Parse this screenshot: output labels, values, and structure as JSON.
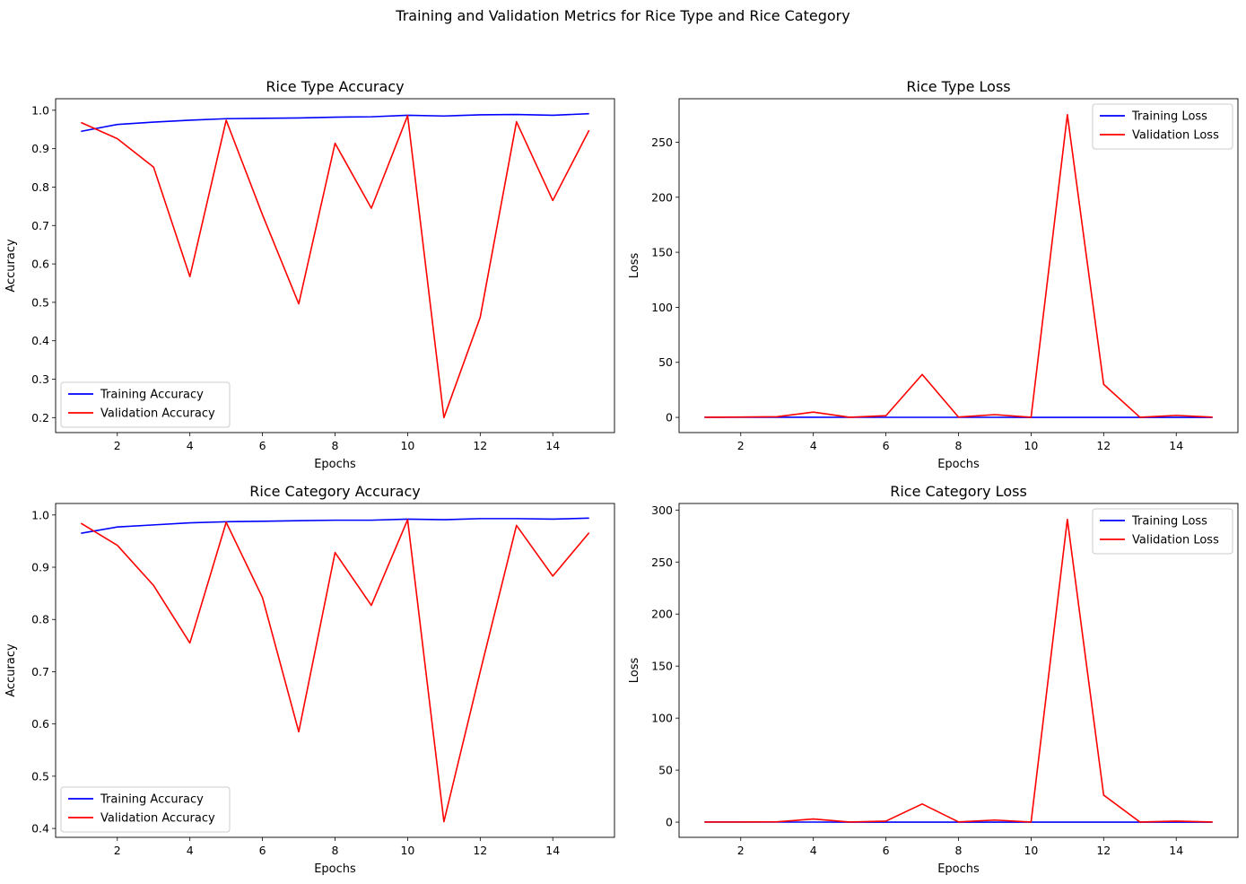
{
  "suptitle": "Training and Validation Metrics for Rice Type and Rice Category",
  "chart_data": [
    {
      "type": "line",
      "title": "Rice Type Accuracy",
      "xlabel": "Epochs",
      "ylabel": "Accuracy",
      "x": [
        1,
        2,
        3,
        4,
        5,
        6,
        7,
        8,
        9,
        10,
        11,
        12,
        13,
        14,
        15
      ],
      "xlim": [
        0.3,
        15.7
      ],
      "ylim": [
        0.161,
        1.03
      ],
      "xticks": [
        2,
        4,
        6,
        8,
        10,
        12,
        14
      ],
      "yticks": [
        0.2,
        0.3,
        0.4,
        0.5,
        0.6,
        0.7,
        0.8,
        0.9,
        1.0
      ],
      "tick_decimals": 1,
      "legend_loc": "lower-left",
      "series": [
        {
          "name": "Training Accuracy",
          "color": "#0000ff",
          "values": [
            0.945,
            0.963,
            0.969,
            0.974,
            0.978,
            0.979,
            0.98,
            0.982,
            0.983,
            0.987,
            0.985,
            0.988,
            0.989,
            0.987,
            0.991
          ]
        },
        {
          "name": "Validation Accuracy",
          "color": "#ff0000",
          "values": [
            0.968,
            0.926,
            0.852,
            0.567,
            0.974,
            0.728,
            0.496,
            0.914,
            0.745,
            0.986,
            0.2,
            0.461,
            0.97,
            0.765,
            0.948
          ]
        }
      ]
    },
    {
      "type": "line",
      "title": "Rice Type Loss",
      "xlabel": "Epochs",
      "ylabel": "Loss",
      "x": [
        1,
        2,
        3,
        4,
        5,
        6,
        7,
        8,
        9,
        10,
        11,
        12,
        13,
        14,
        15
      ],
      "xlim": [
        0.3,
        15.7
      ],
      "ylim": [
        -13.8,
        289.5
      ],
      "xticks": [
        2,
        4,
        6,
        8,
        10,
        12,
        14
      ],
      "yticks": [
        0,
        50,
        100,
        150,
        200,
        250
      ],
      "tick_decimals": 0,
      "legend_loc": "upper-right",
      "series": [
        {
          "name": "Training Loss",
          "color": "#0000ff",
          "values": [
            0.15,
            0.1,
            0.09,
            0.08,
            0.07,
            0.06,
            0.06,
            0.05,
            0.05,
            0.04,
            0.04,
            0.04,
            0.03,
            0.03,
            0.03
          ]
        },
        {
          "name": "Validation Loss",
          "color": "#ff0000",
          "values": [
            0.1,
            0.3,
            0.6,
            4.8,
            0.1,
            1.5,
            39.0,
            0.3,
            2.5,
            0.1,
            275.0,
            30.0,
            0.1,
            1.8,
            0.2
          ]
        }
      ]
    },
    {
      "type": "line",
      "title": "Rice Category Accuracy",
      "xlabel": "Epochs",
      "ylabel": "Accuracy",
      "x": [
        1,
        2,
        3,
        4,
        5,
        6,
        7,
        8,
        9,
        10,
        11,
        12,
        13,
        14,
        15
      ],
      "xlim": [
        0.3,
        15.7
      ],
      "ylim": [
        0.383,
        1.022
      ],
      "xticks": [
        2,
        4,
        6,
        8,
        10,
        12,
        14
      ],
      "yticks": [
        0.4,
        0.5,
        0.6,
        0.7,
        0.8,
        0.9,
        1.0
      ],
      "tick_decimals": 1,
      "legend_loc": "lower-left",
      "series": [
        {
          "name": "Training Accuracy",
          "color": "#0000ff",
          "values": [
            0.965,
            0.977,
            0.981,
            0.985,
            0.987,
            0.988,
            0.989,
            0.99,
            0.99,
            0.992,
            0.991,
            0.993,
            0.993,
            0.992,
            0.994
          ]
        },
        {
          "name": "Validation Accuracy",
          "color": "#ff0000",
          "values": [
            0.984,
            0.942,
            0.865,
            0.755,
            0.986,
            0.842,
            0.585,
            0.928,
            0.827,
            0.991,
            0.413,
            0.7,
            0.98,
            0.883,
            0.966
          ]
        }
      ]
    },
    {
      "type": "line",
      "title": "Rice Category Loss",
      "xlabel": "Epochs",
      "ylabel": "Loss",
      "x": [
        1,
        2,
        3,
        4,
        5,
        6,
        7,
        8,
        9,
        10,
        11,
        12,
        13,
        14,
        15
      ],
      "xlim": [
        0.3,
        15.7
      ],
      "ylim": [
        -14.6,
        306.3
      ],
      "xticks": [
        2,
        4,
        6,
        8,
        10,
        12,
        14
      ],
      "yticks": [
        0,
        50,
        100,
        150,
        200,
        250,
        300
      ],
      "tick_decimals": 0,
      "legend_loc": "upper-right",
      "series": [
        {
          "name": "Training Loss",
          "color": "#0000ff",
          "values": [
            0.1,
            0.08,
            0.07,
            0.06,
            0.05,
            0.05,
            0.04,
            0.04,
            0.04,
            0.03,
            0.03,
            0.03,
            0.03,
            0.02,
            0.02
          ]
        },
        {
          "name": "Validation Loss",
          "color": "#ff0000",
          "values": [
            0.1,
            0.1,
            0.3,
            3.0,
            0.1,
            1.0,
            17.5,
            0.2,
            2.0,
            0.1,
            291.0,
            26.0,
            0.1,
            1.0,
            0.1
          ]
        }
      ]
    }
  ]
}
